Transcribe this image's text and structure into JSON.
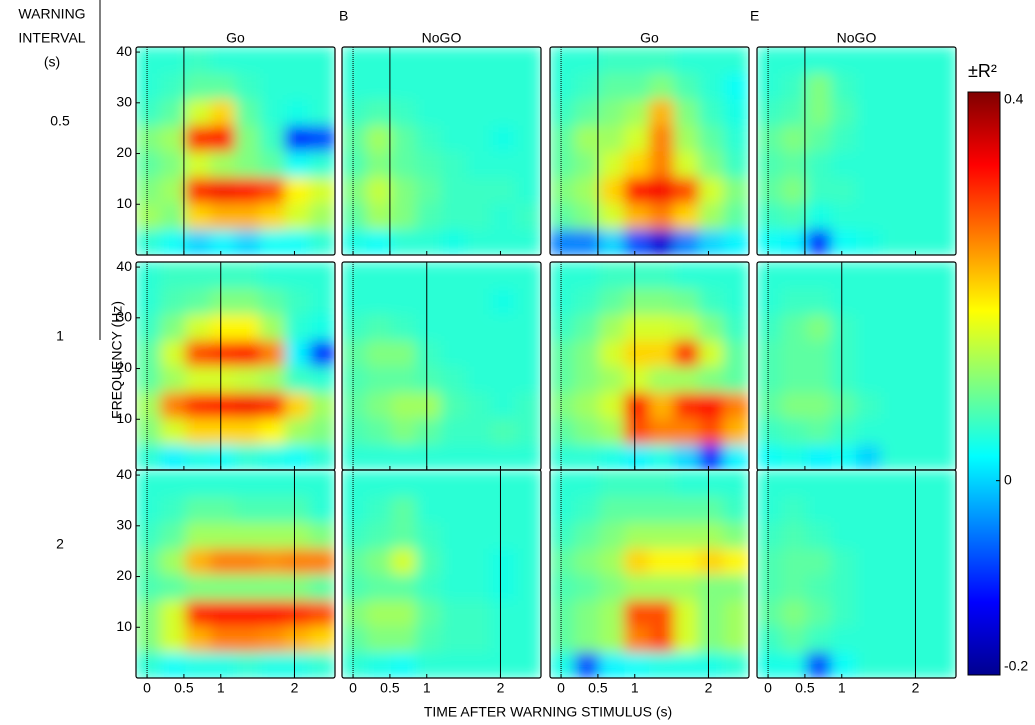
{
  "chart_data": {
    "type": "heatmap",
    "row_axis_label": [
      "WARNING",
      "INTERVAL",
      "(s)"
    ],
    "panel_letters": [
      "B",
      "E"
    ],
    "column_titles": [
      "Go",
      "NoGO",
      "Go",
      "NoGO"
    ],
    "row_labels": [
      0.5,
      1,
      2
    ],
    "xlabel": "TIME AFTER WARNING STIMULUS (s)",
    "ylabel": "FREQUENCY (Hz)",
    "xlim": [
      -0.15,
      2.55
    ],
    "xticks": [
      0,
      0.5,
      1,
      2
    ],
    "ylim": [
      0,
      41
    ],
    "yticks": [
      10,
      20,
      30,
      40
    ],
    "clim": [
      -0.2,
      0.4
    ],
    "cticks": [
      0.4,
      0,
      -0.2
    ],
    "colorbar_label": "±R²",
    "panels": [
      [
        [
          [
            0.05,
            0.03,
            0,
            0.02,
            0,
            0.03,
            0.03,
            0.05
          ],
          [
            0.12,
            0.1,
            0.2,
            0.22,
            0.22,
            0.2,
            0.15,
            0.12
          ],
          [
            0.1,
            0.12,
            0.3,
            0.33,
            0.32,
            0.28,
            0.18,
            0.15
          ],
          [
            0.08,
            0.1,
            0.15,
            0.12,
            0.1,
            0.08,
            0.03,
            0.05
          ],
          [
            0.1,
            0.12,
            0.3,
            0.32,
            0.1,
            0.06,
            -0.1,
            -0.08
          ],
          [
            0.06,
            0.08,
            0.15,
            0.2,
            0.08,
            0.05,
            0.04,
            0.05
          ],
          [
            0.05,
            0.06,
            0.08,
            0.08,
            0.06,
            0.05,
            0.05,
            0.05
          ],
          [
            0.05,
            0.05,
            0.06,
            0.05,
            0.05,
            0.05,
            0.05,
            0.05
          ]
        ],
        [
          [
            0.04,
            0.03,
            0.05,
            0.05,
            0.04,
            0.05,
            0.05,
            0.05
          ],
          [
            0.08,
            0.12,
            0.1,
            0.07,
            0.06,
            0.06,
            0.05,
            0.06
          ],
          [
            0.1,
            0.14,
            0.1,
            0.08,
            0.06,
            0.06,
            0.06,
            0.05
          ],
          [
            0.07,
            0.1,
            0.08,
            0.07,
            0.06,
            0.05,
            0.05,
            0.05
          ],
          [
            0.08,
            0.12,
            0.08,
            0.06,
            0.05,
            0.05,
            0.04,
            0.05
          ],
          [
            0.06,
            0.07,
            0.06,
            0.05,
            0.05,
            0.05,
            0.05,
            0.05
          ],
          [
            0.05,
            0.05,
            0.05,
            0.05,
            0.05,
            0.05,
            0.05,
            0.05
          ],
          [
            0.05,
            0.05,
            0.05,
            0.05,
            0.05,
            0.05,
            0.05,
            0.05
          ]
        ],
        [
          [
            -0.05,
            -0.05,
            0,
            -0.08,
            -0.15,
            -0.05,
            0,
            0.02
          ],
          [
            0.08,
            0.1,
            0.15,
            0.22,
            0.25,
            0.2,
            0.12,
            0.08
          ],
          [
            0.1,
            0.12,
            0.2,
            0.32,
            0.33,
            0.28,
            0.15,
            0.1
          ],
          [
            0.08,
            0.1,
            0.15,
            0.2,
            0.25,
            0.15,
            0.1,
            0.06
          ],
          [
            0.08,
            0.12,
            0.12,
            0.15,
            0.25,
            0.12,
            0.08,
            0.05
          ],
          [
            0.06,
            0.08,
            0.1,
            0.12,
            0.22,
            0.1,
            0.06,
            0.04
          ],
          [
            0.05,
            0.06,
            0.08,
            0.08,
            0.1,
            0.07,
            0.05,
            0.03
          ],
          [
            0.05,
            0.05,
            0.06,
            0.06,
            0.06,
            0.05,
            0.05,
            0.05
          ]
        ],
        [
          [
            0.03,
            0.02,
            -0.1,
            0.03,
            0.04,
            0.05,
            0.05,
            0.05
          ],
          [
            0.06,
            0.07,
            0.04,
            0.05,
            0.05,
            0.05,
            0.05,
            0.05
          ],
          [
            0.08,
            0.1,
            0.06,
            0.06,
            0.05,
            0.05,
            0.05,
            0.05
          ],
          [
            0.07,
            0.08,
            0.06,
            0.05,
            0.05,
            0.05,
            0.05,
            0.05
          ],
          [
            0.08,
            0.1,
            0.08,
            0.06,
            0.05,
            0.05,
            0.05,
            0.05
          ],
          [
            0.06,
            0.07,
            0.1,
            0.07,
            0.05,
            0.05,
            0.05,
            0.05
          ],
          [
            0.05,
            0.06,
            0.1,
            0.06,
            0.05,
            0.05,
            0.05,
            0.05
          ],
          [
            0.05,
            0.05,
            0.05,
            0.05,
            0.05,
            0.05,
            0.05,
            0.05
          ]
        ]
      ],
      [
        [
          [
            0.05,
            0.02,
            0.04,
            0.03,
            0.05,
            0.04,
            0.03,
            0.05
          ],
          [
            0.1,
            0.15,
            0.2,
            0.2,
            0.2,
            0.18,
            0.12,
            0.1
          ],
          [
            0.12,
            0.25,
            0.3,
            0.32,
            0.33,
            0.3,
            0.2,
            0.12
          ],
          [
            0.08,
            0.12,
            0.15,
            0.15,
            0.14,
            0.12,
            0.06,
            0.05
          ],
          [
            0.08,
            0.15,
            0.28,
            0.3,
            0.32,
            0.25,
            0.02,
            -0.1
          ],
          [
            0.06,
            0.1,
            0.15,
            0.18,
            0.18,
            0.12,
            0.05,
            0.04
          ],
          [
            0.05,
            0.07,
            0.08,
            0.1,
            0.1,
            0.08,
            0.06,
            0.05
          ],
          [
            0.05,
            0.06,
            0.06,
            0.06,
            0.06,
            0.05,
            0.05,
            0.05
          ]
        ],
        [
          [
            0.05,
            0.05,
            0.05,
            0.05,
            0.05,
            0.05,
            0.05,
            0.05
          ],
          [
            0.07,
            0.08,
            0.1,
            0.08,
            0.06,
            0.06,
            0.07,
            0.06
          ],
          [
            0.08,
            0.1,
            0.12,
            0.12,
            0.07,
            0.06,
            0.05,
            0.06
          ],
          [
            0.07,
            0.08,
            0.08,
            0.07,
            0.06,
            0.05,
            0.05,
            0.05
          ],
          [
            0.08,
            0.1,
            0.1,
            0.06,
            0.05,
            0.05,
            0.05,
            0.05
          ],
          [
            0.06,
            0.07,
            0.06,
            0.05,
            0.05,
            0.05,
            0.05,
            0.05
          ],
          [
            0.05,
            0.05,
            0.05,
            0.05,
            0.05,
            0.05,
            0.04,
            0.05
          ],
          [
            0.05,
            0.05,
            0.05,
            0.05,
            0.05,
            0.05,
            0.05,
            0.05
          ]
        ],
        [
          [
            0.05,
            0.05,
            0.04,
            0.02,
            0.04,
            0.0,
            -0.1,
            0.02
          ],
          [
            0.08,
            0.1,
            0.12,
            0.28,
            0.25,
            0.25,
            0.28,
            0.22
          ],
          [
            0.1,
            0.12,
            0.15,
            0.32,
            0.22,
            0.3,
            0.32,
            0.25
          ],
          [
            0.08,
            0.1,
            0.12,
            0.15,
            0.12,
            0.12,
            0.1,
            0.08
          ],
          [
            0.08,
            0.1,
            0.15,
            0.2,
            0.2,
            0.3,
            0.15,
            0.08
          ],
          [
            0.06,
            0.08,
            0.12,
            0.15,
            0.15,
            0.14,
            0.1,
            0.06
          ],
          [
            0.05,
            0.06,
            0.08,
            0.1,
            0.1,
            0.09,
            0.06,
            0.05
          ],
          [
            0.05,
            0.05,
            0.06,
            0.06,
            0.06,
            0.05,
            0.05,
            0.05
          ]
        ],
        [
          [
            0.03,
            0.04,
            0.02,
            0.03,
            0.0,
            0.05,
            0.05,
            0.05
          ],
          [
            0.06,
            0.07,
            0.08,
            0.06,
            0.05,
            0.05,
            0.05,
            0.05
          ],
          [
            0.08,
            0.1,
            0.1,
            0.08,
            0.06,
            0.05,
            0.05,
            0.05
          ],
          [
            0.07,
            0.08,
            0.08,
            0.06,
            0.05,
            0.05,
            0.05,
            0.05
          ],
          [
            0.07,
            0.08,
            0.08,
            0.06,
            0.05,
            0.05,
            0.05,
            0.05
          ],
          [
            0.06,
            0.08,
            0.1,
            0.06,
            0.05,
            0.05,
            0.05,
            0.05
          ],
          [
            0.05,
            0.06,
            0.06,
            0.05,
            0.05,
            0.05,
            0.05,
            0.05
          ],
          [
            0.05,
            0.05,
            0.05,
            0.05,
            0.05,
            0.05,
            0.05,
            0.05
          ]
        ]
      ],
      [
        [
          [
            0.05,
            0.03,
            0.04,
            0.04,
            0.05,
            0.04,
            0.04,
            0.05
          ],
          [
            0.1,
            0.15,
            0.22,
            0.25,
            0.25,
            0.24,
            0.22,
            0.2
          ],
          [
            0.1,
            0.15,
            0.3,
            0.32,
            0.32,
            0.32,
            0.3,
            0.28
          ],
          [
            0.07,
            0.08,
            0.1,
            0.1,
            0.1,
            0.1,
            0.1,
            0.08
          ],
          [
            0.08,
            0.12,
            0.22,
            0.25,
            0.25,
            0.24,
            0.25,
            0.25
          ],
          [
            0.06,
            0.08,
            0.12,
            0.12,
            0.12,
            0.12,
            0.12,
            0.1
          ],
          [
            0.05,
            0.06,
            0.08,
            0.08,
            0.07,
            0.07,
            0.07,
            0.05
          ],
          [
            0.05,
            0.05,
            0.05,
            0.05,
            0.05,
            0.05,
            0.05,
            0.05
          ]
        ],
        [
          [
            0.05,
            0.04,
            0.03,
            0.05,
            0.05,
            0.05,
            0.05,
            0.05
          ],
          [
            0.08,
            0.1,
            0.1,
            0.07,
            0.06,
            0.06,
            0.05,
            0.05
          ],
          [
            0.1,
            0.12,
            0.12,
            0.08,
            0.06,
            0.06,
            0.05,
            0.05
          ],
          [
            0.07,
            0.08,
            0.08,
            0.06,
            0.05,
            0.05,
            0.04,
            0.05
          ],
          [
            0.08,
            0.1,
            0.15,
            0.07,
            0.05,
            0.05,
            0.04,
            0.05
          ],
          [
            0.06,
            0.07,
            0.08,
            0.06,
            0.05,
            0.05,
            0.05,
            0.05
          ],
          [
            0.05,
            0.06,
            0.08,
            0.05,
            0.05,
            0.05,
            0.05,
            0.05
          ],
          [
            0.05,
            0.05,
            0.05,
            0.05,
            0.05,
            0.05,
            0.05,
            0.05
          ]
        ],
        [
          [
            0.04,
            -0.08,
            0.02,
            0.03,
            0.04,
            0.04,
            0.04,
            0.05
          ],
          [
            0.08,
            0.1,
            0.12,
            0.25,
            0.28,
            0.15,
            0.1,
            0.12
          ],
          [
            0.08,
            0.1,
            0.12,
            0.28,
            0.28,
            0.15,
            0.1,
            0.12
          ],
          [
            0.07,
            0.08,
            0.1,
            0.12,
            0.12,
            0.12,
            0.1,
            0.1
          ],
          [
            0.08,
            0.1,
            0.12,
            0.2,
            0.18,
            0.18,
            0.2,
            0.18
          ],
          [
            0.06,
            0.08,
            0.1,
            0.12,
            0.12,
            0.12,
            0.12,
            0.1
          ],
          [
            0.05,
            0.06,
            0.08,
            0.08,
            0.08,
            0.08,
            0.08,
            0.06
          ],
          [
            0.05,
            0.05,
            0.06,
            0.06,
            0.06,
            0.05,
            0.05,
            0.05
          ]
        ],
        [
          [
            0.04,
            0.04,
            -0.08,
            0.03,
            0.05,
            0.05,
            0.05,
            0.05
          ],
          [
            0.06,
            0.08,
            0.06,
            0.05,
            0.05,
            0.05,
            0.05,
            0.05
          ],
          [
            0.08,
            0.1,
            0.08,
            0.06,
            0.05,
            0.05,
            0.05,
            0.05
          ],
          [
            0.07,
            0.08,
            0.07,
            0.06,
            0.05,
            0.05,
            0.05,
            0.05
          ],
          [
            0.07,
            0.08,
            0.08,
            0.06,
            0.05,
            0.05,
            0.05,
            0.05
          ],
          [
            0.06,
            0.07,
            0.06,
            0.05,
            0.05,
            0.05,
            0.05,
            0.05
          ],
          [
            0.05,
            0.06,
            0.05,
            0.05,
            0.05,
            0.05,
            0.05,
            0.05
          ],
          [
            0.05,
            0.05,
            0.05,
            0.05,
            0.05,
            0.05,
            0.05,
            0.05
          ]
        ]
      ]
    ]
  }
}
